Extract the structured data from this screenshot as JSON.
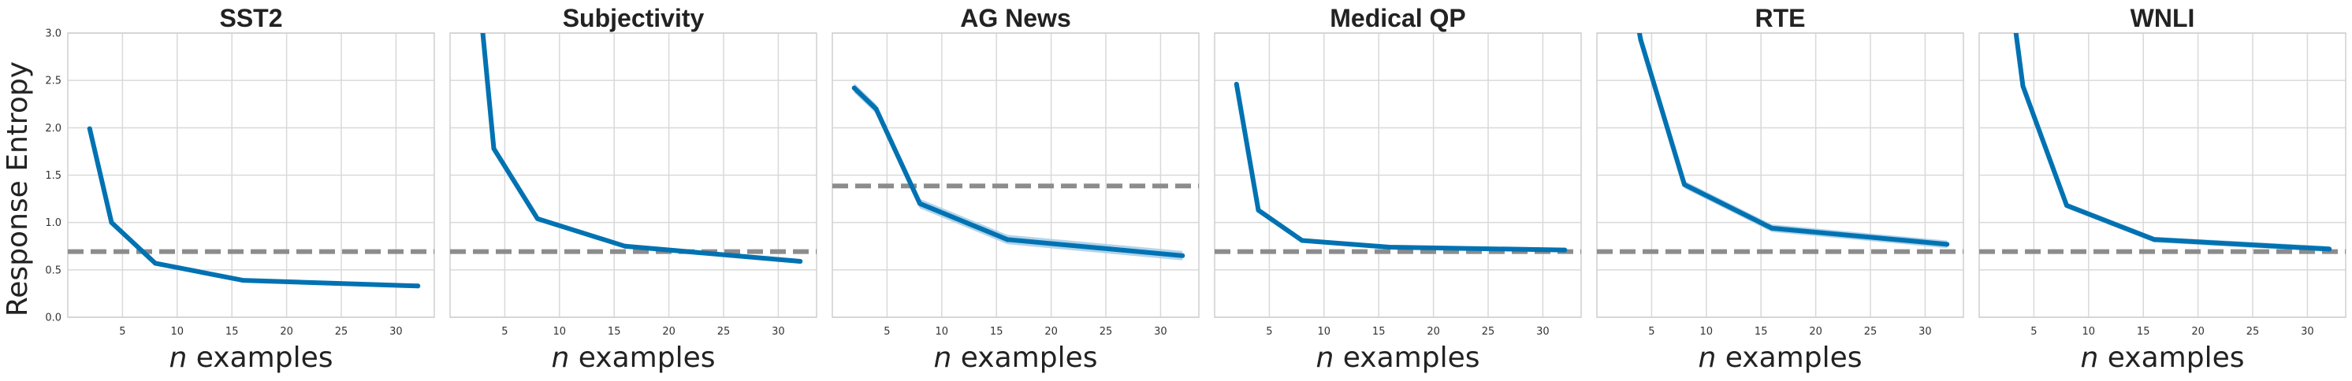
{
  "figure": {
    "ylabel": "Response Entropy",
    "xlabel_var": "n",
    "xlabel_rest": " examples"
  },
  "colors": {
    "line": "#0072b2",
    "band": "#a6cde6",
    "baseline": "#8c8c8c",
    "grid": "#d9d9d9",
    "frame": "#cfcfcf",
    "background": "#ffffff"
  },
  "chart_data": [
    {
      "type": "line",
      "title": "SST2",
      "xlabel": "n examples",
      "ylabel": "Response Entropy",
      "xlim": [
        0,
        33.5
      ],
      "ylim": [
        0,
        3.0
      ],
      "xticks": [
        5,
        10,
        15,
        20,
        25,
        30
      ],
      "yticks": [
        0.0,
        0.5,
        1.0,
        1.5,
        2.0,
        2.5,
        3.0
      ],
      "grid": true,
      "x": [
        2,
        4,
        8,
        16,
        32
      ],
      "y": [
        1.99,
        1.0,
        0.57,
        0.39,
        0.33
      ],
      "band": 0.02,
      "baseline": 0.693
    },
    {
      "type": "line",
      "title": "Subjectivity",
      "xlabel": "n examples",
      "xlim": [
        0,
        33.5
      ],
      "ylim": [
        0,
        3.0
      ],
      "xticks": [
        5,
        10,
        15,
        20,
        25,
        30
      ],
      "yticks": [
        0.0,
        0.5,
        1.0,
        1.5,
        2.0,
        2.5,
        3.0
      ],
      "grid": true,
      "x": [
        2,
        4,
        8,
        16,
        32
      ],
      "y": [
        4.2,
        1.78,
        1.04,
        0.75,
        0.59
      ],
      "band": 0.02,
      "baseline": 0.693
    },
    {
      "type": "line",
      "title": "AG News",
      "xlabel": "n examples",
      "xlim": [
        0,
        33.5
      ],
      "ylim": [
        0,
        3.0
      ],
      "xticks": [
        5,
        10,
        15,
        20,
        25,
        30
      ],
      "yticks": [
        0.0,
        0.5,
        1.0,
        1.5,
        2.0,
        2.5,
        3.0
      ],
      "grid": true,
      "x": [
        2,
        4,
        8,
        16,
        32
      ],
      "y": [
        2.42,
        2.2,
        1.2,
        0.82,
        0.65
      ],
      "band": 0.05,
      "baseline": 1.386
    },
    {
      "type": "line",
      "title": "Medical QP",
      "xlabel": "n examples",
      "xlim": [
        0,
        33.5
      ],
      "ylim": [
        0,
        3.0
      ],
      "xticks": [
        5,
        10,
        15,
        20,
        25,
        30
      ],
      "yticks": [
        0.0,
        0.5,
        1.0,
        1.5,
        2.0,
        2.5,
        3.0
      ],
      "grid": true,
      "x": [
        2,
        4,
        8,
        16,
        32
      ],
      "y": [
        2.46,
        1.13,
        0.81,
        0.74,
        0.71
      ],
      "band": 0.02,
      "baseline": 0.693
    },
    {
      "type": "line",
      "title": "RTE",
      "xlabel": "n examples",
      "xlim": [
        0,
        33.5
      ],
      "ylim": [
        0,
        3.0
      ],
      "xticks": [
        5,
        10,
        15,
        20,
        25,
        30
      ],
      "yticks": [
        0.0,
        0.5,
        1.0,
        1.5,
        2.0,
        2.5,
        3.0
      ],
      "grid": true,
      "x": [
        2,
        4,
        8,
        16,
        32
      ],
      "y": [
        4.2,
        2.93,
        1.4,
        0.94,
        0.77
      ],
      "band": 0.04,
      "baseline": 0.693
    },
    {
      "type": "line",
      "title": "WNLI",
      "xlabel": "n examples",
      "xlim": [
        0,
        33.5
      ],
      "ylim": [
        0,
        3.0
      ],
      "xticks": [
        5,
        10,
        15,
        20,
        25,
        30
      ],
      "yticks": [
        0.0,
        0.5,
        1.0,
        1.5,
        2.0,
        2.5,
        3.0
      ],
      "grid": true,
      "x": [
        2,
        4,
        8,
        16,
        32
      ],
      "y": [
        4.2,
        2.44,
        1.18,
        0.82,
        0.72
      ],
      "band": 0.03,
      "baseline": 0.693
    }
  ]
}
